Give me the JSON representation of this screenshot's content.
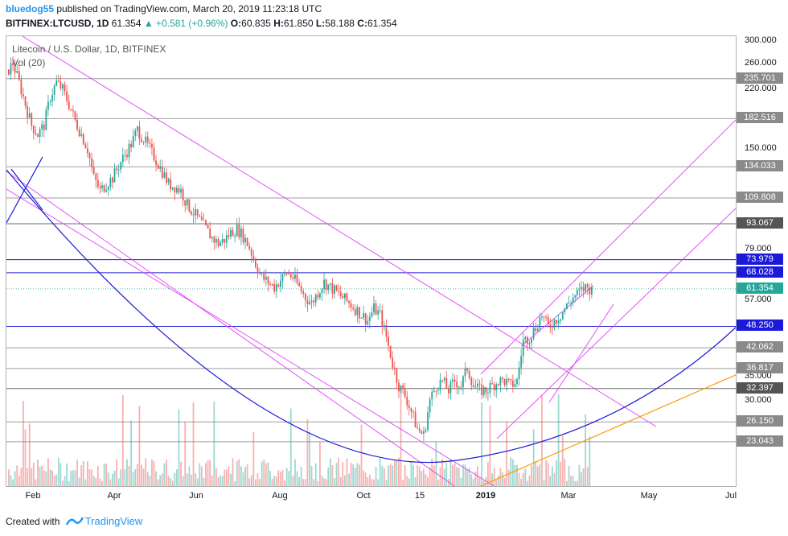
{
  "header": {
    "author": "bluedog55",
    "published_text": " published on TradingView.com, March 20, 2019 11:23:18 UTC",
    "symbol": "BITFINEX:LTCUSD, 1D",
    "last_price": "61.354",
    "change": "▲ +0.581 (+0.96%)",
    "open_label": "O:",
    "open": "60.835",
    "high_label": "H:",
    "high": "61.850",
    "low_label": "L:",
    "low": "58.188",
    "close_label": "C:",
    "close": "61.354"
  },
  "legend": {
    "title": "Litecoin / U.S. Dollar, 1D, BITFINEX",
    "volume": "Vol (20)"
  },
  "footer": {
    "created_with": "Created with",
    "brand": "TradingView"
  },
  "colors": {
    "up": "#26a69a",
    "down": "#ef5350",
    "horizontal_gray": "#9e9e9e",
    "horizontal_blue": "#1a1ad8",
    "channel_pink": "#e040fb",
    "arc_blue": "#1a1ad8",
    "trend_orange": "#ff9800",
    "price_label_bg": "#26a69a"
  },
  "chart_data": {
    "type": "candlestick",
    "scale": "log",
    "price_ticks": [
      "300.000",
      "260.000",
      "220.000",
      "150.000",
      "109.808",
      "79.000",
      "57.000",
      "35.000",
      "30.000"
    ],
    "time_ticks": [
      {
        "label": "Feb",
        "bold": false
      },
      {
        "label": "Apr",
        "bold": false
      },
      {
        "label": "Jun",
        "bold": false
      },
      {
        "label": "Aug",
        "bold": false
      },
      {
        "label": "Oct",
        "bold": false
      },
      {
        "label": "15",
        "bold": false
      },
      {
        "label": "2019",
        "bold": true
      },
      {
        "label": "Mar",
        "bold": false
      },
      {
        "label": "May",
        "bold": false
      },
      {
        "label": "Jul",
        "bold": false
      }
    ],
    "levels": [
      {
        "value": "235.701",
        "kind": "gray"
      },
      {
        "value": "182.516",
        "kind": "gray"
      },
      {
        "value": "134.033",
        "kind": "gray"
      },
      {
        "value": "109.808",
        "kind": "gray"
      },
      {
        "value": "93.067",
        "kind": "dark"
      },
      {
        "value": "73.979",
        "kind": "blue"
      },
      {
        "value": "68.028",
        "kind": "blue"
      },
      {
        "value": "61.354",
        "kind": "price"
      },
      {
        "value": "48.250",
        "kind": "blue"
      },
      {
        "value": "42.062",
        "kind": "gray"
      },
      {
        "value": "36.817",
        "kind": "gray"
      },
      {
        "value": "32.397",
        "kind": "dark"
      },
      {
        "value": "26.150",
        "kind": "gray"
      },
      {
        "value": "23.043",
        "kind": "gray"
      }
    ],
    "price_path": [
      [
        0,
        250
      ],
      [
        2,
        260
      ],
      [
        5,
        230
      ],
      [
        8,
        200
      ],
      [
        11,
        175
      ],
      [
        14,
        165
      ],
      [
        17,
        175
      ],
      [
        20,
        210
      ],
      [
        23,
        230
      ],
      [
        26,
        220
      ],
      [
        29,
        200
      ],
      [
        32,
        180
      ],
      [
        35,
        165
      ],
      [
        38,
        150
      ],
      [
        41,
        125
      ],
      [
        44,
        115
      ],
      [
        47,
        120
      ],
      [
        50,
        125
      ],
      [
        53,
        135
      ],
      [
        56,
        145
      ],
      [
        59,
        155
      ],
      [
        62,
        170
      ],
      [
        65,
        160
      ],
      [
        68,
        150
      ],
      [
        71,
        140
      ],
      [
        74,
        130
      ],
      [
        77,
        120
      ],
      [
        80,
        118
      ],
      [
        83,
        115
      ],
      [
        86,
        105
      ],
      [
        89,
        100
      ],
      [
        92,
        95
      ],
      [
        95,
        90
      ],
      [
        98,
        85
      ],
      [
        101,
        82
      ],
      [
        104,
        84
      ],
      [
        107,
        88
      ],
      [
        110,
        90
      ],
      [
        113,
        86
      ],
      [
        116,
        80
      ],
      [
        119,
        72
      ],
      [
        122,
        66
      ],
      [
        125,
        64
      ],
      [
        128,
        62
      ],
      [
        131,
        65
      ],
      [
        134,
        68
      ],
      [
        137,
        66
      ],
      [
        140,
        62
      ],
      [
        143,
        58
      ],
      [
        146,
        56
      ],
      [
        149,
        60
      ],
      [
        152,
        64
      ],
      [
        155,
        62
      ],
      [
        158,
        60
      ],
      [
        161,
        58
      ],
      [
        164,
        56
      ],
      [
        167,
        54
      ],
      [
        170,
        52
      ],
      [
        173,
        50
      ],
      [
        176,
        54
      ],
      [
        179,
        52
      ],
      [
        182,
        45
      ],
      [
        185,
        38
      ],
      [
        188,
        33
      ],
      [
        191,
        31
      ],
      [
        194,
        28
      ],
      [
        197,
        25
      ],
      [
        200,
        24
      ],
      [
        203,
        30
      ],
      [
        206,
        33
      ],
      [
        209,
        34
      ],
      [
        212,
        32
      ],
      [
        215,
        34
      ],
      [
        218,
        33
      ],
      [
        221,
        37
      ],
      [
        224,
        33
      ],
      [
        227,
        32
      ],
      [
        230,
        32
      ],
      [
        233,
        33
      ],
      [
        236,
        34
      ],
      [
        239,
        34
      ],
      [
        242,
        33
      ],
      [
        245,
        34
      ],
      [
        248,
        44
      ],
      [
        251,
        45
      ],
      [
        254,
        48
      ],
      [
        257,
        52
      ],
      [
        260,
        48
      ],
      [
        263,
        50
      ],
      [
        266,
        52
      ],
      [
        269,
        55
      ],
      [
        272,
        58
      ],
      [
        275,
        60
      ],
      [
        278,
        62
      ],
      [
        281,
        61
      ]
    ]
  }
}
